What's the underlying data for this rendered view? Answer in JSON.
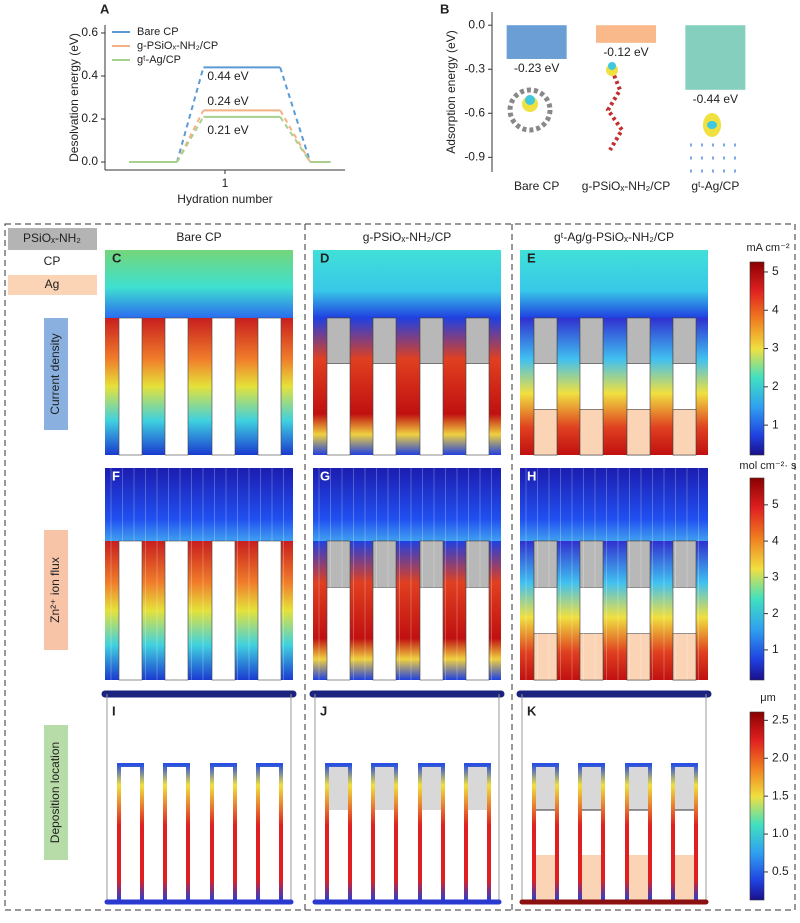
{
  "chart_data": [
    {
      "type": "line",
      "label": "A",
      "ylabel": "Desolvation energy (eV)",
      "xlabel": "Hydration number",
      "x": [
        0.2,
        0.6,
        0.82,
        1.46,
        1.71,
        1.88
      ],
      "xlim": [
        0,
        2
      ],
      "xticks": [
        1
      ],
      "ylim": [
        -0.037,
        0.637
      ],
      "yticks": [
        {
          "value": 0,
          "label": "0.0"
        },
        0.2,
        0.4,
        0.6
      ],
      "series": [
        {
          "name": "Bare CP",
          "color": "#5b9bd5",
          "values": [
            0,
            0,
            0.44,
            0.44,
            0,
            0
          ]
        },
        {
          "name": "g-PSiOₓ-NH₂/CP",
          "color": "#f4b183",
          "values": [
            0,
            0,
            0.24,
            0.24,
            0,
            0
          ]
        },
        {
          "name": "gᵗ-Ag/CP",
          "color": "#a9d18e",
          "values": [
            0,
            0,
            0.21,
            0.21,
            0,
            0
          ]
        }
      ],
      "annotations": [
        "0.44 eV",
        "0.24 eV",
        "0.21 eV"
      ]
    },
    {
      "type": "bar",
      "label": "B",
      "ylabel": "Adsorption energy (eV)",
      "categories": [
        "Bare CP",
        "g-PSiOₓ-NH₂/CP",
        "gᵗ-Ag/CP"
      ],
      "values": [
        -0.23,
        -0.12,
        -0.44
      ],
      "value_labels": [
        "-0.23 eV",
        "-0.12 eV",
        "-0.44 eV"
      ],
      "colors": [
        "#6a9ed4",
        "#f9b98a",
        "#85cfbe"
      ],
      "ylim": [
        -1.0,
        0.09
      ],
      "yticks": [
        {
          "value": 0,
          "label": "0.0"
        },
        -0.3,
        -0.6,
        -0.9
      ]
    }
  ],
  "panels": {
    "legend": [
      {
        "label": "PSiOₓ-NH₂",
        "color": "#b4b4b4"
      },
      {
        "label": "CP",
        "color": "#ffffff"
      },
      {
        "label": "Ag",
        "color": "#fbd3b5"
      }
    ],
    "row_labels": [
      {
        "label": "Current density",
        "color": "#8ab0e0"
      },
      {
        "label": "Zn²⁺ ion flux",
        "color": "#f8c4a8"
      },
      {
        "label": "Deposition location",
        "color": "#b8dca8"
      }
    ],
    "column_titles": [
      "Bare CP",
      "g-PSiOₓ-NH₂/CP",
      "gᵗ-Ag/g-PSiOₓ-NH₂/CP"
    ],
    "letters": [
      [
        "C",
        "D",
        "E"
      ],
      [
        "F",
        "G",
        "H"
      ],
      [
        "I",
        "J",
        "K"
      ]
    ],
    "colorbars": [
      {
        "unit": "mA cm⁻²",
        "lim": [
          0.22,
          5.26
        ],
        "ticks": [
          1,
          2,
          3,
          4,
          5
        ]
      },
      {
        "unit": "mol cm⁻²· s",
        "lim": [
          0.17,
          5.74
        ],
        "ticks": [
          1,
          2,
          3,
          4,
          5
        ]
      },
      {
        "unit": "μm",
        "lim": [
          0.13,
          2.61
        ],
        "ticks": [
          0.5,
          {
            "value": 1,
            "label": "1.0"
          },
          1.5,
          {
            "value": 2,
            "label": "2.0"
          },
          2.5
        ]
      }
    ]
  }
}
